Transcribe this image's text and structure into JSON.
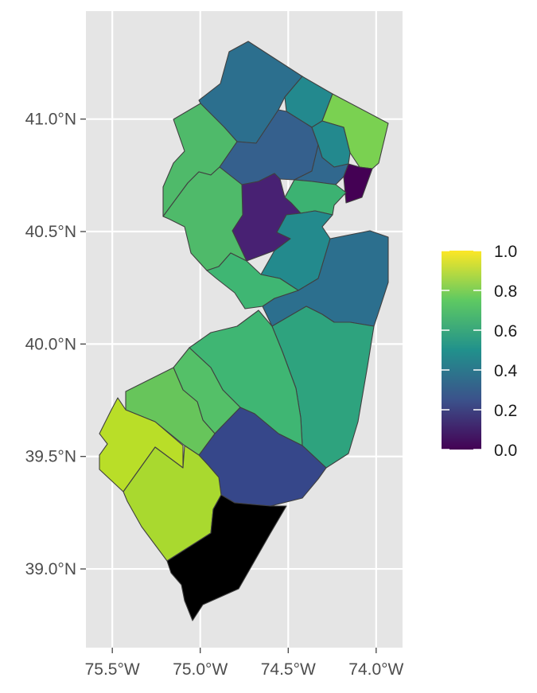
{
  "panel": {
    "background": "#e5e5e5",
    "grid_color": "#ffffff",
    "grid": true
  },
  "axes": {
    "x_ticks": [
      {
        "value": -75.5,
        "label": "75.5°W"
      },
      {
        "value": -75.0,
        "label": "75.0°W"
      },
      {
        "value": -74.5,
        "label": "74.5°W"
      },
      {
        "value": -74.0,
        "label": "74.0°W"
      }
    ],
    "y_ticks": [
      {
        "value": 41.0,
        "label": "41.0°N"
      },
      {
        "value": 40.5,
        "label": "40.5°N"
      },
      {
        "value": 40.0,
        "label": "40.0°N"
      },
      {
        "value": 39.5,
        "label": "39.5°N"
      },
      {
        "value": 39.0,
        "label": "39.0°N"
      }
    ],
    "xlim": [
      -75.65,
      -73.85
    ],
    "ylim": [
      38.65,
      41.48
    ]
  },
  "legend": {
    "position": "right",
    "colormap": "viridis",
    "stops": [
      "#440154",
      "#3b528b",
      "#21918c",
      "#5ec962",
      "#fde725"
    ],
    "range": [
      0.0,
      1.0
    ],
    "tick_labels": [
      "1.0",
      "0.8",
      "0.6",
      "0.4",
      "0.2",
      "0.0"
    ]
  },
  "regions": [
    {
      "value": 0.4,
      "color": "#2c6f8e"
    },
    {
      "value": 0.5,
      "color": "#23898e"
    },
    {
      "value": 0.8,
      "color": "#7ad151"
    },
    {
      "value": 0.65,
      "color": "#4fba6a"
    },
    {
      "value": 0.3,
      "color": "#35608d"
    },
    {
      "value": 0.5,
      "color": "#23898e"
    },
    {
      "value": 0.35,
      "color": "#31688e"
    },
    {
      "value": 0.0,
      "color": "#440154"
    },
    {
      "value": 0.6,
      "color": "#3cb272"
    },
    {
      "value": 0.1,
      "color": "#482173"
    },
    {
      "value": 0.65,
      "color": "#4fba6a"
    },
    {
      "value": 0.5,
      "color": "#238a8d"
    },
    {
      "value": 0.4,
      "color": "#2c6f8e"
    },
    {
      "value": 0.6,
      "color": "#3fb673"
    },
    {
      "value": 0.55,
      "color": "#2ea37e"
    },
    {
      "value": 0.6,
      "color": "#3fb673"
    },
    {
      "value": 0.65,
      "color": "#54c068"
    },
    {
      "value": 0.25,
      "color": "#36478a"
    },
    {
      "value": 0.9,
      "color": "#b9de28"
    },
    {
      "value": 0.7,
      "color": "#67c55b"
    },
    {
      "value": 0.85,
      "color": "#a9d92f"
    }
  ]
}
